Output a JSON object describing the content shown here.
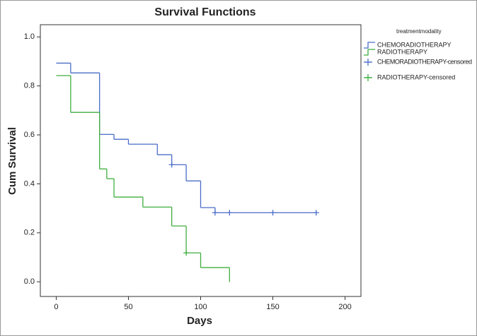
{
  "chart_data": {
    "type": "step",
    "title": "Survival Functions",
    "x_label": "Days",
    "y_label": "Cum Survival",
    "legend_title": "treatmentmodality",
    "xlim": [
      -11,
      211
    ],
    "ylim": [
      -0.06,
      1.05
    ],
    "xticks": [
      0,
      50,
      100,
      150,
      200
    ],
    "yticks": [
      {
        "value": 0,
        "label": "0.0"
      },
      0.2,
      0.4,
      0.6,
      0.8,
      {
        "value": 1,
        "label": "1.0"
      }
    ],
    "series": [
      {
        "name": "CHEMORADIOTHERAPY",
        "color": "#4a6dc8",
        "marker": "line",
        "x": [
          0,
          10,
          30,
          40,
          50,
          70,
          80,
          90,
          100,
          110,
          180
        ],
        "values": [
          0.893,
          0.853,
          0.602,
          0.582,
          0.562,
          0.519,
          0.478,
          0.412,
          0.303,
          0.282,
          0.282
        ]
      },
      {
        "name": "RADIOTHERAPY",
        "color": "#3fae3f",
        "marker": "line",
        "x": [
          0,
          10,
          30,
          35,
          40,
          60,
          80,
          90,
          100,
          120
        ],
        "values": [
          0.842,
          0.692,
          0.461,
          0.421,
          0.346,
          0.305,
          0.228,
          0.118,
          0.058,
          0
        ]
      },
      {
        "name": "CHEMORADIOTHERAPY-censored",
        "color": "#4a6dc8",
        "marker": "plus",
        "x": [
          80,
          110,
          120,
          150,
          180
        ],
        "values": [
          0.478,
          0.282,
          0.282,
          0.282,
          0.282
        ]
      },
      {
        "name": "RADIOTHERAPY-censored",
        "color": "#3fae3f",
        "marker": "plus",
        "x": [
          90
        ],
        "values": [
          0.118
        ]
      }
    ]
  }
}
